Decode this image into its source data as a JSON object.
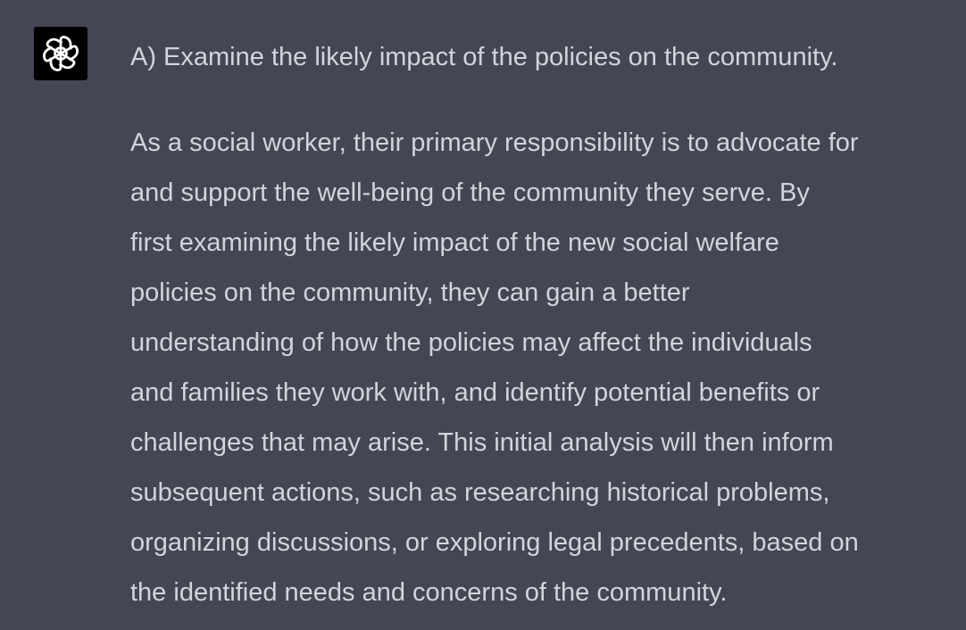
{
  "message": {
    "avatar_icon": "openai-logo-icon",
    "heading": "A) Examine the likely impact of the policies on the community.",
    "body_lines": [
      "As a social worker, their primary responsibility is to advocate for",
      "and support the well-being of the community they serve. By",
      "first examining the likely impact of the new social welfare",
      "policies on the community, they can gain a better",
      "understanding of how the policies may affect the individuals",
      "and families they work with, and identify potential benefits or",
      "challenges that may arise. This initial analysis will then inform",
      "subsequent actions, such as researching historical problems,",
      "organizing discussions, or exploring legal precedents, based on",
      "the identified needs and concerns of the community."
    ]
  },
  "colors": {
    "background": "#444654",
    "text": "#d1d5db",
    "avatar_bg": "#000000"
  }
}
